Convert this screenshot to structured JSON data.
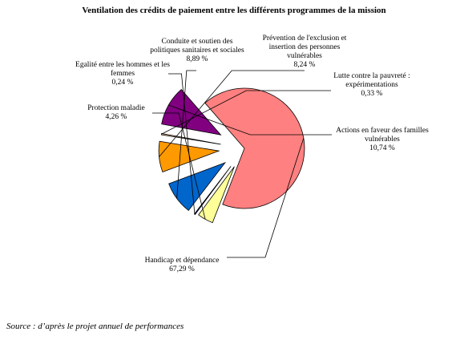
{
  "chart_data": {
    "type": "pie",
    "title": "Ventilation des crédits de paiement entre les différents programmes de la mission",
    "slices": [
      {
        "label": "Handicap et dépendance",
        "value_text": "67,29 %",
        "value": 67.29,
        "color": "#ff8080"
      },
      {
        "label": "Protection maladie",
        "value_text": "4,26 %",
        "value": 4.26,
        "color": "#ffff99"
      },
      {
        "label": "Egalité entre les hommes et les femmes",
        "value_text": "0,24 %",
        "value": 0.24,
        "color": "#000080"
      },
      {
        "label": "Conduite et soutien des politiques sanitaires et sociales",
        "value_text": "8,89 %",
        "value": 8.89,
        "color": "#0066cc"
      },
      {
        "label": "Prévention de l'exclusion et insertion des personnes vulnérables",
        "value_text": "8,24 %",
        "value": 8.24,
        "color": "#ff9900"
      },
      {
        "label": "Lutte contre la pauvreté : expérimentations",
        "value_text": "0,33 %",
        "value": 0.33,
        "color": "#ffcc99"
      },
      {
        "label": "Actions en faveur des familles vulnérables",
        "value_text": "10,74 %",
        "value": 10.74,
        "color": "#800080"
      }
    ],
    "legend": "none"
  },
  "source": "Source : d’après le projet annuel de performances"
}
